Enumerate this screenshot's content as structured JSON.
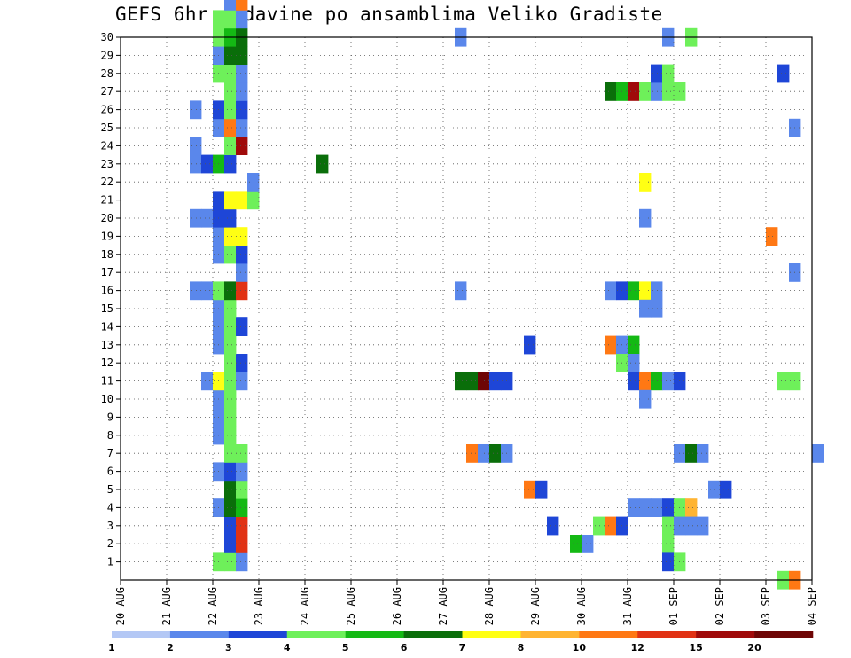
{
  "chart_data": {
    "type": "heatmap",
    "title": "GEFS 6hr padavine po ansamblima Veliko Gradiste",
    "xlabel": "",
    "ylabel": "",
    "x_ticks": [
      "20 AUG",
      "21 AUG",
      "22 AUG",
      "23 AUG",
      "24 AUG",
      "25 AUG",
      "26 AUG",
      "27 AUG",
      "28 AUG",
      "29 AUG",
      "30 AUG",
      "31 AUG",
      "01 SEP",
      "02 SEP",
      "03 SEP",
      "04 SEP"
    ],
    "y_ticks": [
      "1",
      "2",
      "3",
      "4",
      "5",
      "6",
      "7",
      "8",
      "9",
      "10",
      "11",
      "12",
      "13",
      "14",
      "15",
      "16",
      "17",
      "18",
      "19",
      "20",
      "21",
      "22",
      "23",
      "24",
      "25",
      "26",
      "27",
      "28",
      "29",
      "30"
    ],
    "y_range": [
      0,
      30
    ],
    "time_step_hours": 6,
    "x_range_days": [
      0,
      15
    ],
    "grid": "dotted",
    "legend_position": "bottom",
    "legend": {
      "labels": [
        "1",
        "2",
        "3",
        "4",
        "5",
        "6",
        "7",
        "8",
        "10",
        "12",
        "15",
        "20"
      ],
      "colors": [
        "#b4c8f5",
        "#5a87eb",
        "#1e46d7",
        "#6ef05a",
        "#14b914",
        "#0a6e0a",
        "#ffff14",
        "#ffb432",
        "#ff7814",
        "#e13214",
        "#a00a0a",
        "#6e0505"
      ]
    },
    "cells": [
      [
        2.0,
        0,
        3
      ],
      [
        2.25,
        0,
        3
      ],
      [
        2.5,
        0,
        1
      ],
      [
        2.25,
        1,
        2
      ],
      [
        2.5,
        1,
        9
      ],
      [
        2.25,
        2,
        2
      ],
      [
        2.5,
        2,
        9
      ],
      [
        2.0,
        3,
        1
      ],
      [
        2.25,
        3,
        5
      ],
      [
        2.5,
        3,
        4
      ],
      [
        2.25,
        4,
        5
      ],
      [
        2.5,
        4,
        3
      ],
      [
        2.0,
        5,
        1
      ],
      [
        2.25,
        5,
        2
      ],
      [
        2.5,
        5,
        1
      ],
      [
        2.25,
        6,
        3
      ],
      [
        2.5,
        6,
        3
      ],
      [
        2.0,
        7,
        1
      ],
      [
        2.25,
        7,
        3
      ],
      [
        2.0,
        8,
        1
      ],
      [
        2.25,
        8,
        3
      ],
      [
        2.0,
        9,
        1
      ],
      [
        2.25,
        9,
        3
      ],
      [
        1.75,
        10,
        1
      ],
      [
        2.0,
        10,
        6
      ],
      [
        2.25,
        10,
        3
      ],
      [
        2.5,
        10,
        1
      ],
      [
        2.25,
        11,
        3
      ],
      [
        2.5,
        11,
        2
      ],
      [
        2.0,
        12,
        1
      ],
      [
        2.25,
        12,
        3
      ],
      [
        2.0,
        13,
        1
      ],
      [
        2.25,
        13,
        3
      ],
      [
        2.5,
        13,
        2
      ],
      [
        2.0,
        14,
        1
      ],
      [
        2.25,
        14,
        3
      ],
      [
        1.5,
        15,
        1
      ],
      [
        1.75,
        15,
        1
      ],
      [
        2.0,
        15,
        3
      ],
      [
        2.25,
        15,
        5
      ],
      [
        2.5,
        15,
        9
      ],
      [
        2.5,
        16,
        1
      ],
      [
        2.0,
        17,
        1
      ],
      [
        2.25,
        17,
        3
      ],
      [
        2.5,
        17,
        2
      ],
      [
        2.0,
        18,
        1
      ],
      [
        2.25,
        18,
        6
      ],
      [
        2.5,
        18,
        6
      ],
      [
        1.5,
        19,
        1
      ],
      [
        1.75,
        19,
        1
      ],
      [
        2.0,
        19,
        2
      ],
      [
        2.25,
        19,
        2
      ],
      [
        2.0,
        20,
        2
      ],
      [
        2.25,
        20,
        6
      ],
      [
        2.5,
        20,
        6
      ],
      [
        2.75,
        20,
        3
      ],
      [
        2.75,
        21,
        1
      ],
      [
        1.5,
        22,
        1
      ],
      [
        1.75,
        22,
        2
      ],
      [
        2.0,
        22,
        4
      ],
      [
        2.25,
        22,
        2
      ],
      [
        1.5,
        23,
        1
      ],
      [
        2.25,
        23,
        3
      ],
      [
        2.5,
        23,
        10
      ],
      [
        2.0,
        24,
        1
      ],
      [
        2.25,
        24,
        8
      ],
      [
        2.5,
        24,
        1
      ],
      [
        1.5,
        25,
        1
      ],
      [
        2.0,
        25,
        2
      ],
      [
        2.25,
        25,
        3
      ],
      [
        2.5,
        25,
        2
      ],
      [
        2.25,
        26,
        3
      ],
      [
        2.5,
        26,
        1
      ],
      [
        2.0,
        27,
        3
      ],
      [
        2.25,
        27,
        3
      ],
      [
        2.5,
        27,
        1
      ],
      [
        2.0,
        28,
        1
      ],
      [
        2.25,
        28,
        5
      ],
      [
        2.5,
        28,
        5
      ],
      [
        2.0,
        29,
        3
      ],
      [
        2.25,
        29,
        4
      ],
      [
        2.5,
        29,
        5
      ],
      [
        2.0,
        30,
        3
      ],
      [
        2.25,
        30,
        3
      ],
      [
        2.5,
        30,
        1
      ],
      [
        2.25,
        31,
        1
      ],
      [
        2.5,
        31,
        8
      ],
      [
        1.5,
        32,
        1
      ],
      [
        2.25,
        32,
        2
      ],
      [
        2.0,
        33,
        5
      ],
      [
        2.25,
        34,
        1
      ],
      [
        2.5,
        34,
        1
      ],
      [
        1.75,
        35,
        1
      ],
      [
        2.0,
        35,
        2
      ],
      [
        2.25,
        35,
        1
      ],
      [
        2.5,
        35,
        3
      ],
      [
        2.0,
        36,
        2
      ],
      [
        2.25,
        36,
        5
      ],
      [
        2.5,
        36,
        2
      ],
      [
        2.0,
        37,
        1
      ],
      [
        2.25,
        37,
        1
      ],
      [
        2.0,
        38,
        5
      ],
      [
        2.25,
        38,
        4
      ],
      [
        2.5,
        38,
        3
      ],
      [
        4.25,
        22,
        5
      ],
      [
        4.75,
        32,
        1
      ],
      [
        5.0,
        32,
        1
      ],
      [
        7.25,
        35,
        1
      ],
      [
        7.25,
        29,
        1
      ],
      [
        7.25,
        15,
        1
      ],
      [
        7.25,
        10,
        5
      ],
      [
        7.5,
        10,
        5
      ],
      [
        7.75,
        10,
        11
      ],
      [
        8.0,
        10,
        2
      ],
      [
        8.25,
        10,
        2
      ],
      [
        7.5,
        6,
        8
      ],
      [
        7.75,
        6,
        1
      ],
      [
        8.0,
        6,
        5
      ],
      [
        8.25,
        6,
        1
      ],
      [
        8.75,
        4,
        8
      ],
      [
        9.0,
        4,
        2
      ],
      [
        8.75,
        12,
        2
      ],
      [
        9.25,
        2,
        2
      ],
      [
        9.75,
        1,
        4
      ],
      [
        10.0,
        1,
        1
      ],
      [
        10.25,
        2,
        3
      ],
      [
        10.5,
        2,
        8
      ],
      [
        10.75,
        2,
        2
      ],
      [
        10.5,
        12,
        8
      ],
      [
        10.75,
        12,
        1
      ],
      [
        11.0,
        12,
        4
      ],
      [
        10.75,
        11,
        3
      ],
      [
        11.0,
        11,
        1
      ],
      [
        10.5,
        15,
        1
      ],
      [
        10.75,
        15,
        2
      ],
      [
        11.0,
        15,
        4
      ],
      [
        11.25,
        15,
        6
      ],
      [
        11.5,
        15,
        1
      ],
      [
        11.25,
        14,
        1
      ],
      [
        11.5,
        14,
        1
      ],
      [
        11.0,
        10,
        2
      ],
      [
        11.25,
        10,
        8
      ],
      [
        11.5,
        10,
        4
      ],
      [
        11.75,
        10,
        1
      ],
      [
        12.0,
        10,
        2
      ],
      [
        11.25,
        9,
        1
      ],
      [
        11.25,
        19,
        1
      ],
      [
        11.25,
        21,
        6
      ],
      [
        10.5,
        26,
        5
      ],
      [
        10.75,
        26,
        4
      ],
      [
        11.0,
        26,
        10
      ],
      [
        11.25,
        26,
        3
      ],
      [
        11.5,
        26,
        1
      ],
      [
        11.75,
        26,
        3
      ],
      [
        12.0,
        26,
        3
      ],
      [
        11.5,
        27,
        2
      ],
      [
        11.75,
        27,
        3
      ],
      [
        11.0,
        3,
        1
      ],
      [
        11.25,
        3,
        1
      ],
      [
        11.5,
        3,
        1
      ],
      [
        11.75,
        3,
        2
      ],
      [
        12.0,
        3,
        3
      ],
      [
        12.25,
        3,
        7
      ],
      [
        11.75,
        1,
        3
      ],
      [
        11.75,
        0,
        2
      ],
      [
        12.0,
        0,
        3
      ],
      [
        11.75,
        2,
        3
      ],
      [
        12.0,
        2,
        1
      ],
      [
        12.25,
        2,
        1
      ],
      [
        12.5,
        2,
        1
      ],
      [
        12.0,
        6,
        1
      ],
      [
        12.25,
        6,
        5
      ],
      [
        12.5,
        6,
        1
      ],
      [
        12.75,
        4,
        1
      ],
      [
        13.0,
        4,
        2
      ],
      [
        11.75,
        29,
        1
      ],
      [
        12.25,
        29,
        3
      ],
      [
        14.25,
        10,
        3
      ],
      [
        14.5,
        10,
        3
      ],
      [
        14.25,
        -1,
        3
      ],
      [
        14.5,
        -1,
        8
      ],
      [
        14.0,
        18,
        8
      ],
      [
        14.5,
        16,
        1
      ],
      [
        14.5,
        24,
        1
      ],
      [
        14.25,
        27,
        2
      ],
      [
        15.0,
        6,
        1
      ]
    ]
  }
}
